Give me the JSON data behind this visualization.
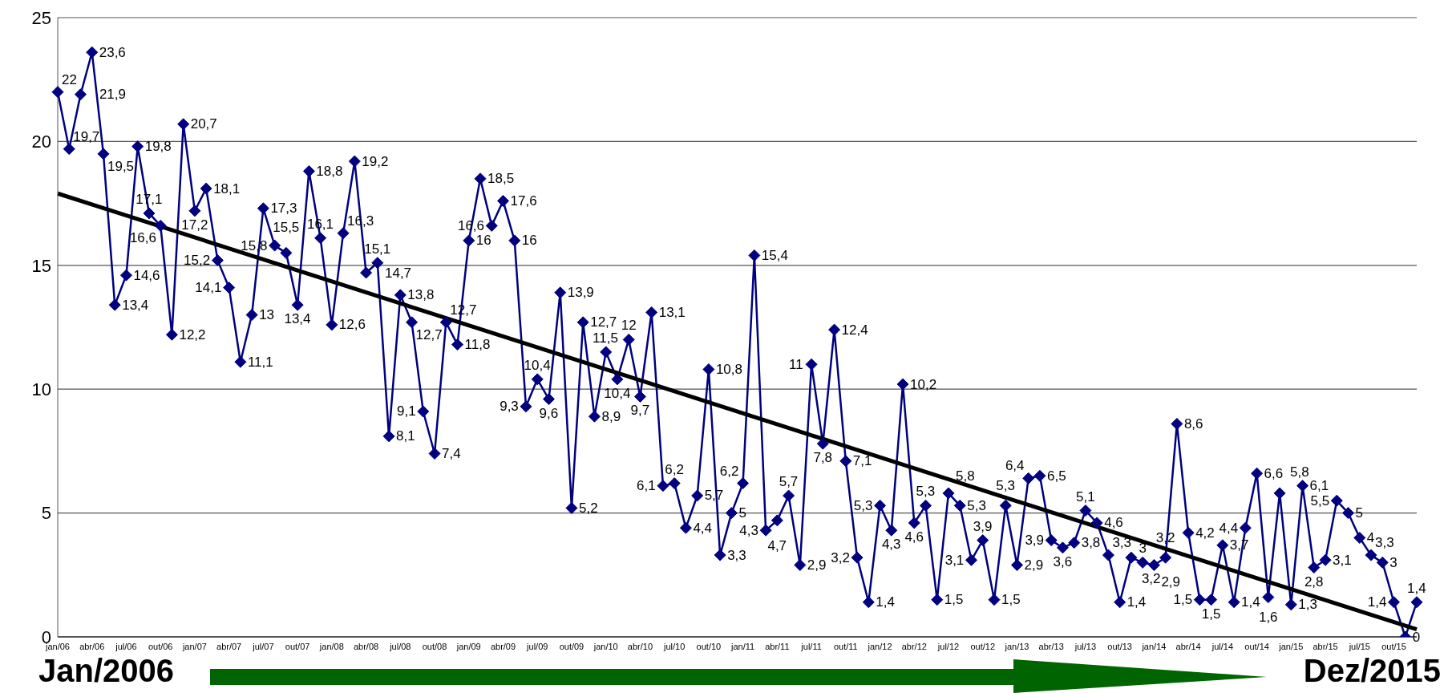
{
  "chart_data": {
    "type": "line",
    "categories": [
      "jan/06",
      null,
      null,
      "abr/06",
      null,
      null,
      "jul/06",
      null,
      null,
      "out/06",
      null,
      null,
      "jan/07",
      null,
      null,
      "abr/07",
      null,
      null,
      "jul/07",
      null,
      null,
      "out/07",
      null,
      null,
      "jan/08",
      null,
      null,
      "abr/08",
      null,
      null,
      "jul/08",
      null,
      null,
      "out/08",
      null,
      null,
      "jan/09",
      null,
      null,
      "abr/09",
      null,
      null,
      "jul/09",
      null,
      null,
      "out/09",
      null,
      null,
      "jan/10",
      null,
      null,
      "abr/10",
      null,
      null,
      "jul/10",
      null,
      null,
      "out/10",
      null,
      null,
      "jan/11",
      null,
      null,
      "abr/11",
      null,
      null,
      "jul/11",
      null,
      null,
      "out/11",
      null,
      null,
      "jan/12",
      null,
      null,
      "abr/12",
      null,
      null,
      "jul/12",
      null,
      null,
      "out/12",
      null,
      null,
      "jan/13",
      null,
      null,
      "abr/13",
      null,
      null,
      "jul/13",
      null,
      null,
      "out/13",
      null,
      null,
      "jan/14",
      null,
      null,
      "abr/14",
      null,
      null,
      "jul/14",
      null,
      null,
      "out/14",
      null,
      null,
      "jan/15",
      null,
      null,
      "abr/15",
      null,
      null,
      "jul/15",
      null,
      null,
      "out/15",
      null,
      null
    ],
    "series": [
      {
        "type": "line",
        "color": "#000080",
        "marker": "diamond",
        "value_labels": [
          "22",
          "19,7",
          "21,9",
          "23,6",
          "19,5",
          "13,4",
          "14,6",
          "19,8",
          "17,1",
          "16,6",
          "12,2",
          "20,7",
          "17,2",
          "18,1",
          "15,2",
          "14,1",
          "11,1",
          "13",
          "17,3",
          "15,8",
          "15,5",
          "13,4",
          "18,8",
          "16,1",
          "12,6",
          "16,3",
          "19,2",
          "14,7",
          "15,1",
          "8,1",
          "13,8",
          "12,7",
          "9,1",
          "7,4",
          "12,7",
          "11,8",
          "16",
          "18,5",
          "16,6",
          "17,6",
          "16",
          "9,3",
          "10,4",
          "9,6",
          "13,9",
          "5,2",
          "12,7",
          "8,9",
          "11,5",
          "10,4",
          "12",
          "9,7",
          "13,1",
          "6,1",
          "6,2",
          "4,4",
          "5,7",
          "10,8",
          "3,3",
          "5",
          "6,2",
          "15,4",
          "4,3",
          "4,7",
          "5,7",
          "2,9",
          "11",
          "7,8",
          "12,4",
          "7,1",
          "3,2",
          "1,4",
          "5,3",
          "4,3",
          "10,2",
          "4,6",
          "5,3",
          "1,5",
          "5,8",
          "5,3",
          "3,1",
          "3,9",
          "1,5",
          "5,3",
          "2,9",
          "6,4",
          "6,5",
          "3,9",
          "3,6",
          "3,8",
          "5,1",
          "4,6",
          "3,3",
          "1,4",
          "3,2",
          "3",
          "2,9",
          "3,2",
          "8,6",
          "4,2",
          "1,5",
          "1,5",
          "3,7",
          "1,4",
          "4,4",
          "6,6",
          "1,6",
          "5,8",
          "1,3",
          "6,1",
          "2,8",
          "3,1",
          "5,5",
          "5",
          "4",
          "3,3",
          "3",
          "1,4",
          "0",
          "1,4"
        ],
        "values": [
          22,
          19.7,
          21.9,
          23.6,
          19.5,
          13.4,
          14.6,
          19.8,
          17.1,
          16.6,
          12.2,
          20.7,
          17.2,
          18.1,
          15.2,
          14.1,
          11.1,
          13,
          17.3,
          15.8,
          15.5,
          13.4,
          18.8,
          16.1,
          12.6,
          16.3,
          19.2,
          14.7,
          15.1,
          8.1,
          13.8,
          12.7,
          9.1,
          7.4,
          12.7,
          11.8,
          16,
          18.5,
          16.6,
          17.6,
          16,
          9.3,
          10.4,
          9.6,
          13.9,
          5.2,
          12.7,
          8.9,
          11.5,
          10.4,
          12,
          9.7,
          13.1,
          6.1,
          6.2,
          4.4,
          5.7,
          10.8,
          3.3,
          5,
          6.2,
          15.4,
          4.3,
          4.7,
          5.7,
          2.9,
          11,
          7.8,
          12.4,
          7.1,
          3.2,
          1.4,
          5.3,
          4.3,
          10.2,
          4.6,
          5.3,
          1.5,
          5.8,
          5.3,
          3.1,
          3.9,
          1.5,
          5.3,
          2.9,
          6.4,
          6.5,
          3.9,
          3.6,
          3.8,
          5.1,
          4.6,
          3.3,
          1.4,
          3.2,
          3,
          2.9,
          3.2,
          8.6,
          4.2,
          1.5,
          1.5,
          3.7,
          1.4,
          4.4,
          6.6,
          1.6,
          5.8,
          1.3,
          6.1,
          2.8,
          3.1,
          5.5,
          5,
          4,
          3.3,
          3,
          1.4,
          0,
          1.4
        ]
      },
      {
        "type": "line",
        "color": "#000000",
        "marker": "none",
        "values": [
          17.9,
          null,
          null,
          null,
          null,
          null,
          null,
          null,
          null,
          null,
          null,
          null,
          null,
          null,
          null,
          null,
          null,
          null,
          null,
          null,
          null,
          null,
          null,
          null,
          null,
          null,
          null,
          null,
          null,
          null,
          null,
          null,
          null,
          null,
          null,
          null,
          null,
          null,
          null,
          null,
          null,
          null,
          null,
          null,
          null,
          null,
          null,
          null,
          null,
          null,
          null,
          null,
          null,
          null,
          null,
          null,
          null,
          null,
          null,
          null,
          null,
          null,
          null,
          null,
          null,
          null,
          null,
          null,
          null,
          null,
          null,
          null,
          null,
          null,
          null,
          null,
          null,
          null,
          null,
          null,
          null,
          null,
          null,
          null,
          null,
          null,
          null,
          null,
          null,
          null,
          null,
          null,
          null,
          null,
          null,
          null,
          null,
          null,
          null,
          null,
          null,
          null,
          null,
          null,
          null,
          null,
          null,
          null,
          null,
          null,
          null,
          null,
          null,
          null,
          null,
          null,
          null,
          null,
          null,
          0.3
        ]
      }
    ],
    "ylim": [
      0,
      25
    ],
    "yticks": [
      0,
      5,
      10,
      15,
      20,
      25
    ],
    "grid": "y",
    "legend": false,
    "line_style": "solid",
    "annotations": [
      "Jan/2006",
      "Dez/2015"
    ]
  }
}
